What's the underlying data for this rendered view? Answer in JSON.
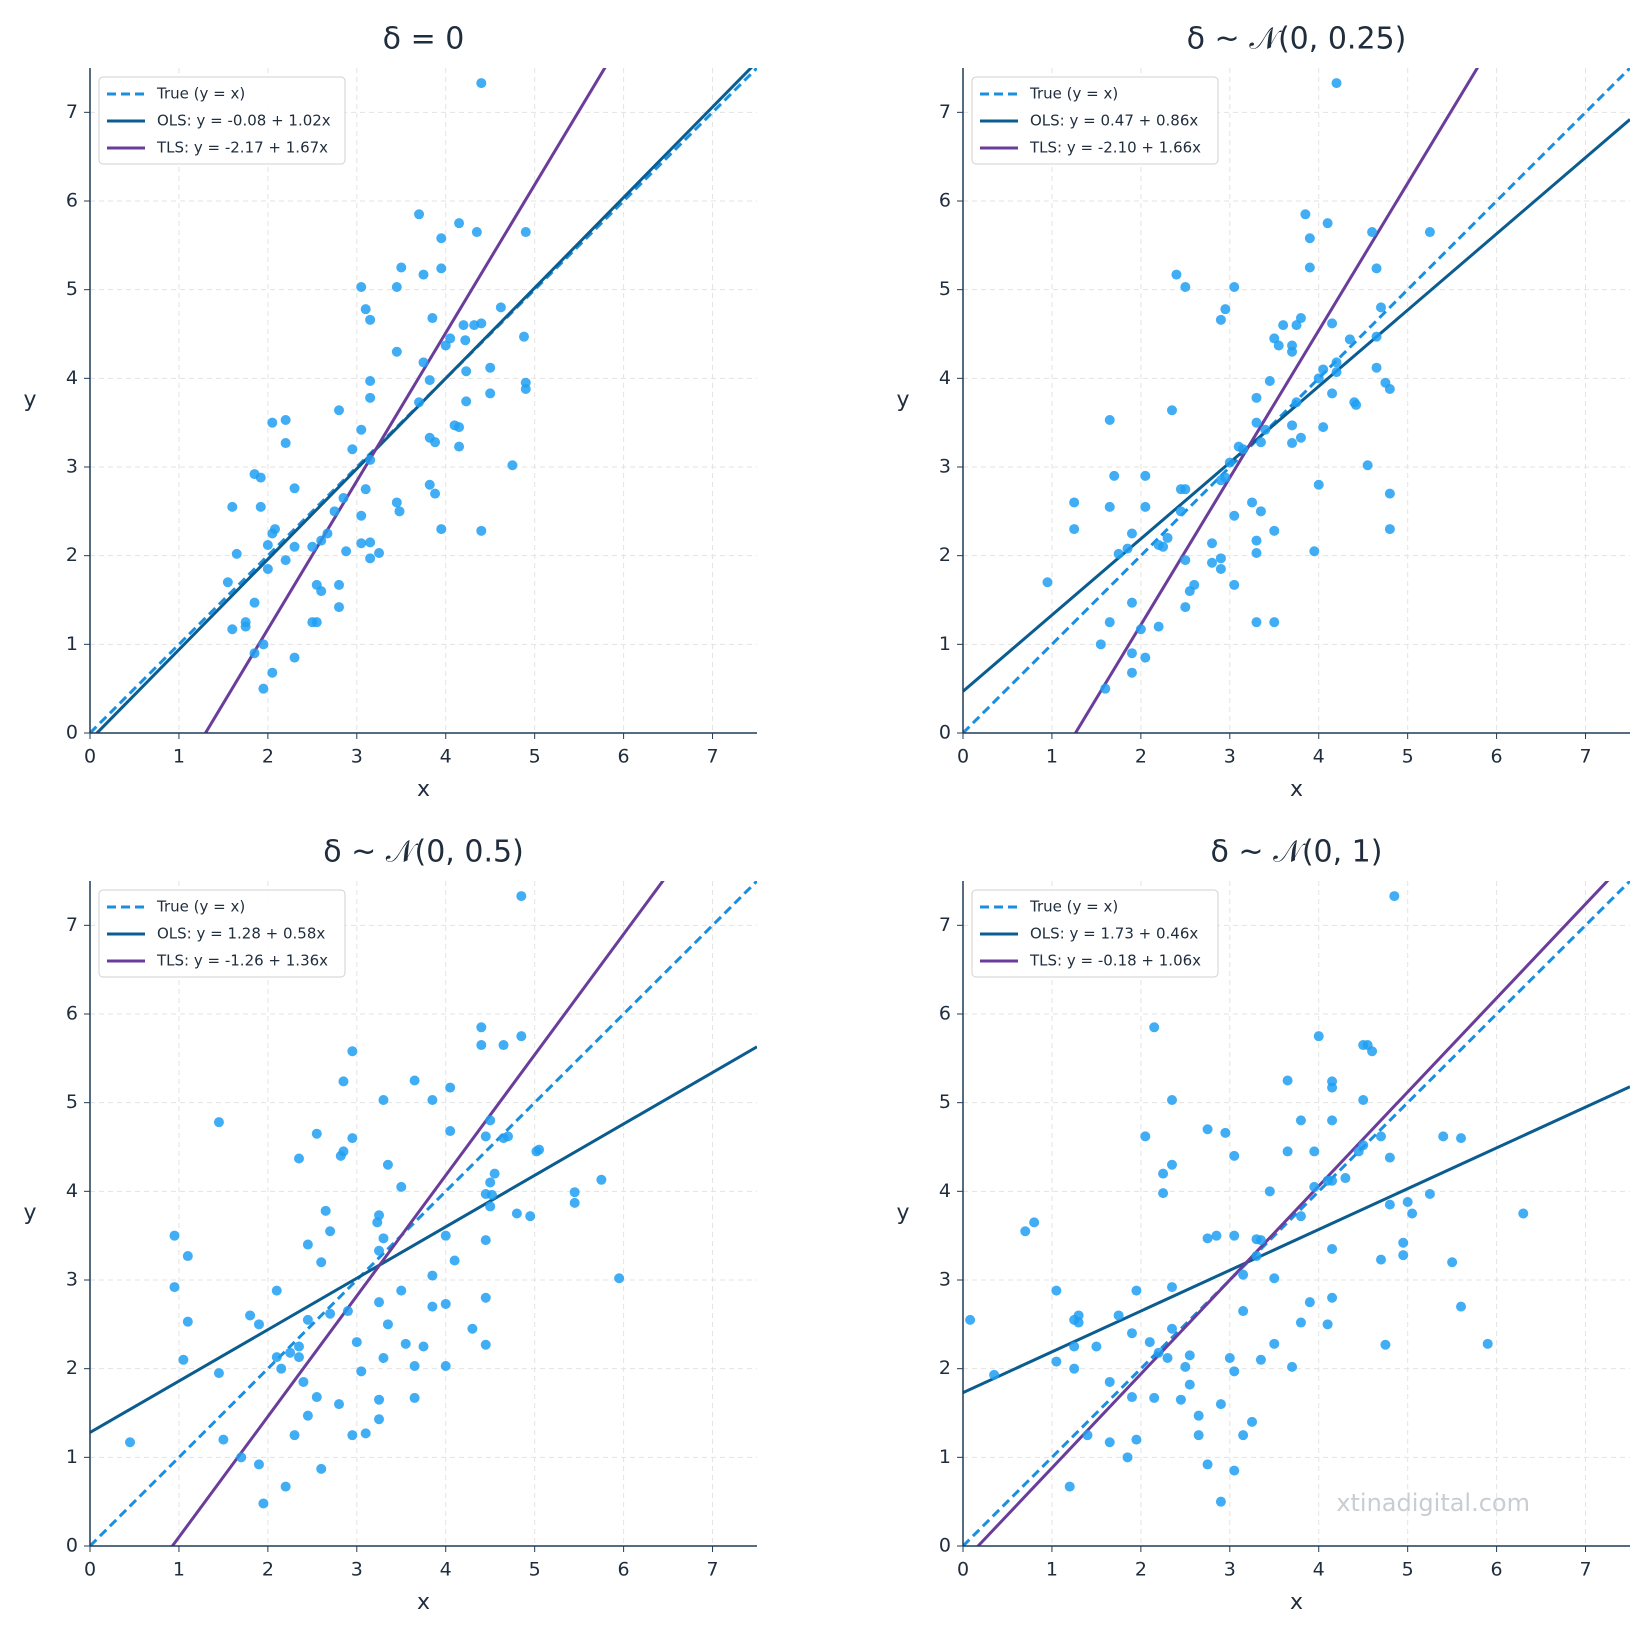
{
  "chart_data": [
    {
      "type": "scatter",
      "title": "δ = 0",
      "xlabel": "x",
      "ylabel": "y",
      "xlim": [
        0,
        7.5
      ],
      "ylim": [
        0,
        7.5
      ],
      "xticks": [
        0,
        1,
        2,
        3,
        4,
        5,
        6,
        7
      ],
      "yticks": [
        0,
        1,
        2,
        3,
        4,
        5,
        6,
        7
      ],
      "grid": true,
      "legend": "upper left",
      "series": [
        {
          "name": "True (y = x)",
          "kind": "line",
          "dashed": true,
          "color": "#1a8fe0",
          "x": [
            0,
            7.5
          ],
          "values": [
            0,
            7.5
          ]
        },
        {
          "name": "OLS: y = -0.08 + 1.02x",
          "kind": "line",
          "dashed": false,
          "color": "#0b5c8f",
          "x": [
            0,
            7.5
          ],
          "values": [
            -0.08,
            7.57
          ]
        },
        {
          "name": "TLS: y = -2.17 + 1.67x",
          "kind": "line",
          "dashed": false,
          "color": "#6a3d9a",
          "x": [
            0,
            7.5
          ],
          "values": [
            -2.17,
            10.36
          ]
        },
        {
          "kind": "points",
          "color": "#1e9ff2",
          "x": [
            4.4,
            3.7,
            4.15,
            4.35,
            4.9,
            3.95,
            3.5,
            3.95,
            3.75,
            3.05,
            3.45,
            3.1,
            3.15,
            3.85,
            4.62,
            4.2,
            4.32,
            4.4,
            4.05,
            4.22,
            4.88,
            4.0,
            3.45,
            3.75,
            4.5,
            4.23,
            3.15,
            3.82,
            4.9,
            4.9,
            4.5,
            3.15,
            3.7,
            4.23,
            2.8,
            2.05,
            2.2,
            4.1,
            4.15,
            3.05,
            3.82,
            3.88,
            2.2,
            4.15,
            2.95,
            3.15,
            4.75,
            1.85,
            1.92,
            2.3,
            3.1,
            3.82,
            3.88,
            2.85,
            3.45,
            1.6,
            1.92,
            3.48,
            2.75,
            3.05,
            2.08,
            4.4,
            3.95,
            2.05,
            2.67,
            2.6,
            2.5,
            2.3,
            2.0,
            3.05,
            3.15,
            1.65,
            2.88,
            3.25,
            3.15,
            2.2,
            2.0,
            1.55,
            2.55,
            2.6,
            2.8,
            1.85,
            2.8,
            2.5,
            2.55,
            1.75,
            1.6,
            1.75,
            1.95,
            1.85,
            2.3,
            2.05,
            1.95
          ],
          "values": [
            7.33,
            5.85,
            5.75,
            5.65,
            5.65,
            5.58,
            5.25,
            5.24,
            5.17,
            5.03,
            5.03,
            4.78,
            4.66,
            4.68,
            4.8,
            4.6,
            4.6,
            4.62,
            4.45,
            4.43,
            4.47,
            4.37,
            4.3,
            4.18,
            4.12,
            4.08,
            3.97,
            3.98,
            3.95,
            3.88,
            3.83,
            3.78,
            3.73,
            3.74,
            3.64,
            3.5,
            3.53,
            3.47,
            3.45,
            3.42,
            3.33,
            3.28,
            3.27,
            3.23,
            3.2,
            3.08,
            3.02,
            2.92,
            2.88,
            2.76,
            2.75,
            2.8,
            2.7,
            2.65,
            2.6,
            2.55,
            2.55,
            2.5,
            2.5,
            2.45,
            2.3,
            2.28,
            2.3,
            2.25,
            2.25,
            2.17,
            2.1,
            2.1,
            2.12,
            2.14,
            2.15,
            2.02,
            2.05,
            2.03,
            1.97,
            1.95,
            1.85,
            1.7,
            1.67,
            1.6,
            1.67,
            1.47,
            1.42,
            1.25,
            1.25,
            1.25,
            1.17,
            1.2,
            1.0,
            0.9,
            0.85,
            0.68,
            0.5
          ]
        }
      ]
    },
    {
      "type": "scatter",
      "title": "δ ~ 𝒩(0, 0.25)",
      "xlabel": "x",
      "ylabel": "y",
      "xlim": [
        0,
        7.5
      ],
      "ylim": [
        0,
        7.5
      ],
      "xticks": [
        0,
        1,
        2,
        3,
        4,
        5,
        6,
        7
      ],
      "yticks": [
        0,
        1,
        2,
        3,
        4,
        5,
        6,
        7
      ],
      "grid": true,
      "legend": "upper left",
      "series": [
        {
          "name": "True (y = x)",
          "kind": "line",
          "dashed": true,
          "color": "#1a8fe0",
          "x": [
            0,
            7.5
          ],
          "values": [
            0,
            7.5
          ]
        },
        {
          "name": "OLS: y = 0.47 + 0.86x",
          "kind": "line",
          "dashed": false,
          "color": "#0b5c8f",
          "x": [
            0,
            7.5
          ],
          "values": [
            0.47,
            6.92
          ]
        },
        {
          "name": "TLS: y = -2.10 + 1.66x",
          "kind": "line",
          "dashed": false,
          "color": "#6a3d9a",
          "x": [
            0,
            7.5
          ],
          "values": [
            -2.1,
            10.35
          ]
        },
        {
          "kind": "points",
          "color": "#1e9ff2",
          "x": [
            4.2,
            3.85,
            4.1,
            4.6,
            5.25,
            3.9,
            3.9,
            4.65,
            2.4,
            2.5,
            3.05,
            2.95,
            2.9,
            3.8,
            4.7,
            3.75,
            3.6,
            4.15,
            3.5,
            4.65,
            3.55,
            3.7,
            3.7,
            4.35,
            4.2,
            4.65,
            4.2,
            4.0,
            4.05,
            3.45,
            4.75,
            4.8,
            4.15,
            3.3,
            3.75,
            4.4,
            4.42,
            2.35,
            1.65,
            3.3,
            3.7,
            4.05,
            3.4,
            3.8,
            3.35,
            3.7,
            3.1,
            3.15,
            3.0,
            4.55,
            1.7,
            2.05,
            2.95,
            2.9,
            4.0,
            2.45,
            2.5,
            4.8,
            1.25,
            3.25,
            1.65,
            2.05,
            2.45,
            3.35,
            3.05,
            3.5,
            1.25,
            4.8,
            1.9,
            2.3,
            3.3,
            2.8,
            2.2,
            2.25,
            1.85,
            1.75,
            3.95,
            3.3,
            2.9,
            2.5,
            2.8,
            2.9,
            0.95,
            3.05,
            2.6,
            2.55,
            1.9,
            2.5,
            1.65,
            3.3,
            3.5,
            2.2,
            2.0,
            1.55,
            1.9,
            2.05,
            1.9,
            1.6
          ],
          "values": [
            7.33,
            5.85,
            5.75,
            5.65,
            5.65,
            5.58,
            5.25,
            5.24,
            5.17,
            5.03,
            5.03,
            4.78,
            4.66,
            4.68,
            4.8,
            4.6,
            4.6,
            4.62,
            4.45,
            4.47,
            4.37,
            4.37,
            4.3,
            4.44,
            4.18,
            4.12,
            4.07,
            4.0,
            4.1,
            3.97,
            3.95,
            3.88,
            3.83,
            3.78,
            3.73,
            3.73,
            3.7,
            3.64,
            3.53,
            3.5,
            3.47,
            3.45,
            3.42,
            3.33,
            3.28,
            3.27,
            3.23,
            3.2,
            3.05,
            3.02,
            2.9,
            2.9,
            2.88,
            2.85,
            2.8,
            2.75,
            2.75,
            2.7,
            2.6,
            2.6,
            2.55,
            2.55,
            2.5,
            2.5,
            2.45,
            2.28,
            2.3,
            2.3,
            2.25,
            2.2,
            2.17,
            2.14,
            2.12,
            2.1,
            2.08,
            2.02,
            2.05,
            2.03,
            1.97,
            1.95,
            1.92,
            1.85,
            1.7,
            1.67,
            1.67,
            1.6,
            1.47,
            1.42,
            1.25,
            1.25,
            1.25,
            1.2,
            1.17,
            1.0,
            0.9,
            0.85,
            0.68,
            0.5
          ]
        }
      ]
    },
    {
      "type": "scatter",
      "title": "δ ~ 𝒩(0, 0.5)",
      "xlabel": "x",
      "ylabel": "y",
      "xlim": [
        0,
        7.5
      ],
      "ylim": [
        0,
        7.5
      ],
      "xticks": [
        0,
        1,
        2,
        3,
        4,
        5,
        6,
        7
      ],
      "yticks": [
        0,
        1,
        2,
        3,
        4,
        5,
        6,
        7
      ],
      "grid": true,
      "legend": "upper left",
      "series": [
        {
          "name": "True (y = x)",
          "kind": "line",
          "dashed": true,
          "color": "#1a8fe0",
          "x": [
            0,
            7.5
          ],
          "values": [
            0,
            7.5
          ]
        },
        {
          "name": "OLS: y = 1.28 + 0.58x",
          "kind": "line",
          "dashed": false,
          "color": "#0b5c8f",
          "x": [
            0,
            7.5
          ],
          "values": [
            1.28,
            5.63
          ]
        },
        {
          "name": "TLS: y = -1.26 + 1.36x",
          "kind": "line",
          "dashed": false,
          "color": "#6a3d9a",
          "x": [
            0,
            7.5
          ],
          "values": [
            -1.26,
            8.94
          ]
        },
        {
          "kind": "points",
          "color": "#1e9ff2",
          "x": [
            4.85,
            4.4,
            4.85,
            4.4,
            4.65,
            2.95,
            2.85,
            3.65,
            4.05,
            3.3,
            3.85,
            1.45,
            4.5,
            4.05,
            2.55,
            4.45,
            4.65,
            4.7,
            2.95,
            5.05,
            5.02,
            2.85,
            2.82,
            2.35,
            3.35,
            4.55,
            5.75,
            3.5,
            4.5,
            4.45,
            4.52,
            5.45,
            5.45,
            4.5,
            2.65,
            4.8,
            4.95,
            3.25,
            3.23,
            2.7,
            4.0,
            0.95,
            3.3,
            4.45,
            2.45,
            3.25,
            1.1,
            4.1,
            2.6,
            5.95,
            3.85,
            0.95,
            2.1,
            3.5,
            4.45,
            3.25,
            4.0,
            3.85,
            2.9,
            2.7,
            1.8,
            1.1,
            2.45,
            1.9,
            3.35,
            4.3,
            3.55,
            3.75,
            3.0,
            4.45,
            2.35,
            2.25,
            2.1,
            2.35,
            3.3,
            1.05,
            3.05,
            4.0,
            3.65,
            2.15,
            1.45,
            2.4,
            3.65,
            2.55,
            3.25,
            2.8,
            2.45,
            3.25,
            3.1,
            2.95,
            2.3,
            1.5,
            0.45,
            1.7,
            1.9,
            2.6,
            2.2,
            1.95
          ],
          "values": [
            7.33,
            5.85,
            5.75,
            5.65,
            5.65,
            5.58,
            5.24,
            5.25,
            5.17,
            5.03,
            5.03,
            4.78,
            4.8,
            4.68,
            4.65,
            4.62,
            4.6,
            4.62,
            4.6,
            4.47,
            4.45,
            4.45,
            4.4,
            4.37,
            4.3,
            4.2,
            4.13,
            4.05,
            4.1,
            3.97,
            3.96,
            3.99,
            3.87,
            3.83,
            3.78,
            3.75,
            3.72,
            3.73,
            3.65,
            3.55,
            3.5,
            3.5,
            3.47,
            3.45,
            3.4,
            3.33,
            3.27,
            3.22,
            3.2,
            3.02,
            3.05,
            2.92,
            2.88,
            2.88,
            2.8,
            2.75,
            2.73,
            2.7,
            2.65,
            2.62,
            2.6,
            2.53,
            2.55,
            2.5,
            2.5,
            2.45,
            2.28,
            2.25,
            2.3,
            2.27,
            2.25,
            2.18,
            2.13,
            2.13,
            2.12,
            2.1,
            1.97,
            2.03,
            2.03,
            2.0,
            1.95,
            1.85,
            1.67,
            1.68,
            1.65,
            1.6,
            1.47,
            1.43,
            1.27,
            1.25,
            1.25,
            1.2,
            1.17,
            1.0,
            0.92,
            0.87,
            0.67,
            0.48
          ]
        }
      ]
    },
    {
      "type": "scatter",
      "title": "δ ~ 𝒩(0, 1)",
      "xlabel": "x",
      "ylabel": "y",
      "xlim": [
        0,
        7.5
      ],
      "ylim": [
        0,
        7.5
      ],
      "xticks": [
        0,
        1,
        2,
        3,
        4,
        5,
        6,
        7
      ],
      "yticks": [
        0,
        1,
        2,
        3,
        4,
        5,
        6,
        7
      ],
      "grid": true,
      "legend": "upper left",
      "series": [
        {
          "name": "True (y = x)",
          "kind": "line",
          "dashed": true,
          "color": "#1a8fe0",
          "x": [
            0,
            7.5
          ],
          "values": [
            0,
            7.5
          ]
        },
        {
          "name": "OLS: y = 1.73 + 0.46x",
          "kind": "line",
          "dashed": false,
          "color": "#0b5c8f",
          "x": [
            0,
            7.5
          ],
          "values": [
            1.73,
            5.18
          ]
        },
        {
          "name": "TLS: y = -0.18 + 1.06x",
          "kind": "line",
          "dashed": false,
          "color": "#6a3d9a",
          "x": [
            0,
            7.5
          ],
          "values": [
            -0.18,
            7.77
          ]
        },
        {
          "kind": "points",
          "color": "#1e9ff2",
          "x": [
            4.85,
            2.15,
            4.0,
            4.5,
            4.55,
            4.6,
            3.65,
            4.15,
            4.15,
            2.35,
            4.5,
            3.8,
            4.15,
            4.5,
            4.45,
            2.75,
            2.95,
            5.4,
            5.6,
            2.05,
            4.7,
            3.65,
            3.95,
            3.05,
            4.8,
            2.35,
            2.25,
            4.3,
            4.1,
            4.15,
            3.95,
            2.25,
            5.25,
            3.45,
            5.0,
            4.8,
            0.8,
            3.8,
            6.3,
            5.05,
            0.7,
            3.05,
            2.75,
            2.85,
            3.3,
            3.35,
            4.95,
            4.15,
            3.3,
            4.95,
            4.7,
            5.5,
            3.15,
            3.5,
            1.05,
            1.95,
            2.35,
            3.9,
            4.15,
            5.6,
            3.15,
            1.3,
            1.75,
            1.25,
            0.08,
            1.3,
            3.8,
            4.1,
            2.35,
            1.9,
            2.1,
            4.75,
            5.9,
            3.5,
            1.5,
            1.25,
            2.2,
            2.55,
            2.3,
            3.0,
            3.35,
            1.05,
            3.7,
            2.5,
            1.25,
            3.05,
            0.35,
            1.65,
            2.55,
            1.9,
            2.15,
            2.45,
            2.9,
            2.65,
            3.25,
            1.4,
            2.65,
            3.15,
            1.95,
            1.65,
            1.85,
            2.75,
            3.05,
            1.2,
            2.9
          ],
          "values": [
            7.33,
            5.85,
            5.75,
            5.65,
            5.65,
            5.58,
            5.25,
            5.24,
            5.17,
            5.03,
            5.03,
            4.8,
            4.8,
            4.52,
            4.45,
            4.7,
            4.66,
            4.62,
            4.6,
            4.62,
            4.62,
            4.45,
            4.45,
            4.4,
            4.38,
            4.3,
            4.2,
            4.15,
            4.12,
            4.12,
            4.05,
            3.98,
            3.97,
            4.0,
            3.88,
            3.85,
            3.65,
            3.72,
            3.75,
            3.75,
            3.55,
            3.5,
            3.47,
            3.5,
            3.46,
            3.45,
            3.42,
            3.35,
            3.27,
            3.28,
            3.23,
            3.2,
            3.06,
            3.02,
            2.88,
            2.88,
            2.92,
            2.75,
            2.8,
            2.7,
            2.65,
            2.6,
            2.6,
            2.55,
            2.55,
            2.52,
            2.52,
            2.5,
            2.45,
            2.4,
            2.3,
            2.27,
            2.28,
            2.28,
            2.25,
            2.25,
            2.18,
            2.15,
            2.12,
            2.12,
            2.1,
            2.08,
            2.02,
            2.02,
            2.0,
            1.97,
            1.93,
            1.85,
            1.82,
            1.68,
            1.67,
            1.65,
            1.6,
            1.47,
            1.4,
            1.25,
            1.25,
            1.25,
            1.2,
            1.17,
            1.0,
            0.92,
            0.85,
            0.67,
            0.5
          ]
        }
      ]
    }
  ],
  "watermark": "xtinadigital.com"
}
